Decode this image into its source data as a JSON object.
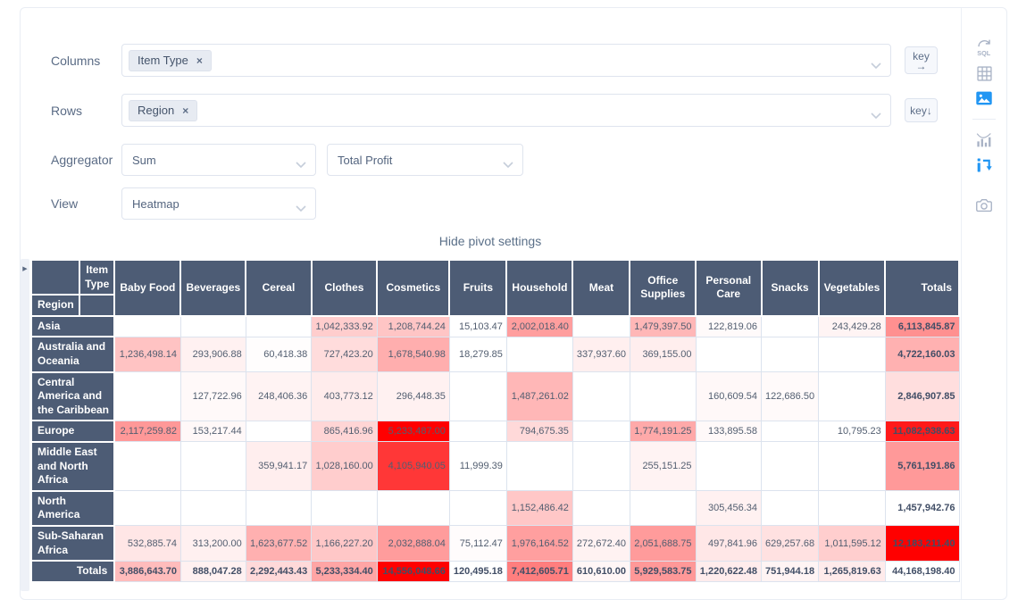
{
  "glyphs": {
    "remove_tag": "×",
    "expand_handle": "▶"
  },
  "controls": {
    "columns": {
      "label": "Columns",
      "tags": [
        {
          "label": "Item Type"
        }
      ],
      "key_button": {
        "label": "key",
        "arrow": "→"
      }
    },
    "rows": {
      "label": "Rows",
      "tags": [
        {
          "label": "Region"
        }
      ],
      "key_button": {
        "label": "key",
        "arrow": "↓"
      }
    },
    "aggregator": {
      "label": "Aggregator",
      "value": "Sum",
      "argument_value": "Total Profit"
    },
    "view": {
      "label": "View",
      "value": "Heatmap"
    },
    "hide_settings": "Hide pivot settings"
  },
  "sidebar": {
    "icons": [
      {
        "name": "sql",
        "active": false
      },
      {
        "name": "table-grid",
        "active": false
      },
      {
        "name": "visualization-image",
        "active": true
      },
      {
        "name": "bar-chart",
        "active": false
      },
      {
        "name": "pivot",
        "active": true
      },
      {
        "name": "camera",
        "active": false
      }
    ]
  },
  "colors": {
    "accent": "#2196f3",
    "header_bg": "#4d5c75",
    "heat_low": "#ffffff",
    "heat_high": "#ff0000"
  },
  "pivot_table": {
    "col_axis_label": "Item Type",
    "row_axis_label": "Region",
    "totals_label": "Totals",
    "columns": [
      "Baby Food",
      "Beverages",
      "Cereal",
      "Clothes",
      "Cosmetics",
      "Fruits",
      "Household",
      "Meat",
      "Office Supplies",
      "Personal Care",
      "Snacks",
      "Vegetables"
    ],
    "rows": [
      {
        "label": "Asia",
        "values": [
          "",
          "",
          "",
          "1,042,333.92",
          "1,208,744.24",
          "15,103.47",
          "2,002,018.40",
          "",
          "1,479,397.50",
          "122,819.06",
          "",
          "243,429.28"
        ],
        "total": "6,113,845.87"
      },
      {
        "label": "Australia and Oceania",
        "values": [
          "1,236,498.14",
          "293,906.88",
          "60,418.38",
          "727,423.20",
          "1,678,540.98",
          "18,279.85",
          "",
          "337,937.60",
          "369,155.00",
          "",
          "",
          ""
        ],
        "total": "4,722,160.03"
      },
      {
        "label": "Central America and the Caribbean",
        "values": [
          "",
          "127,722.96",
          "248,406.36",
          "403,773.12",
          "296,448.35",
          "",
          "1,487,261.02",
          "",
          "",
          "160,609.54",
          "122,686.50",
          ""
        ],
        "total": "2,846,907.85"
      },
      {
        "label": "Europe",
        "values": [
          "2,117,259.82",
          "153,217.44",
          "",
          "865,416.96",
          "5,233,487.00",
          "",
          "794,675.35",
          "",
          "1,774,191.25",
          "133,895.58",
          "",
          "10,795.23"
        ],
        "total": "11,082,938.63"
      },
      {
        "label": "Middle East and North Africa",
        "values": [
          "",
          "",
          "359,941.17",
          "1,028,160.00",
          "4,105,940.05",
          "11,999.39",
          "",
          "",
          "255,151.25",
          "",
          "",
          ""
        ],
        "total": "5,761,191.86"
      },
      {
        "label": "North America",
        "values": [
          "",
          "",
          "",
          "",
          "",
          "",
          "1,152,486.42",
          "",
          "",
          "305,456.34",
          "",
          ""
        ],
        "total": "1,457,942.76"
      },
      {
        "label": "Sub-Saharan Africa",
        "values": [
          "532,885.74",
          "313,200.00",
          "1,623,677.52",
          "1,166,227.20",
          "2,032,888.04",
          "75,112.47",
          "1,976,164.52",
          "272,672.40",
          "2,051,688.75",
          "497,841.96",
          "629,257.68",
          "1,011,595.12"
        ],
        "total": "12,183,211.40"
      }
    ],
    "totals_row": {
      "label": "Totals",
      "values": [
        "3,886,643.70",
        "888,047.28",
        "2,292,443.43",
        "5,233,334.40",
        "14,556,048.66",
        "120,495.18",
        "7,412,605.71",
        "610,610.00",
        "5,929,583.75",
        "1,220,622.48",
        "751,944.18",
        "1,265,819.63"
      ],
      "grand_total": "44,168,198.40"
    }
  }
}
